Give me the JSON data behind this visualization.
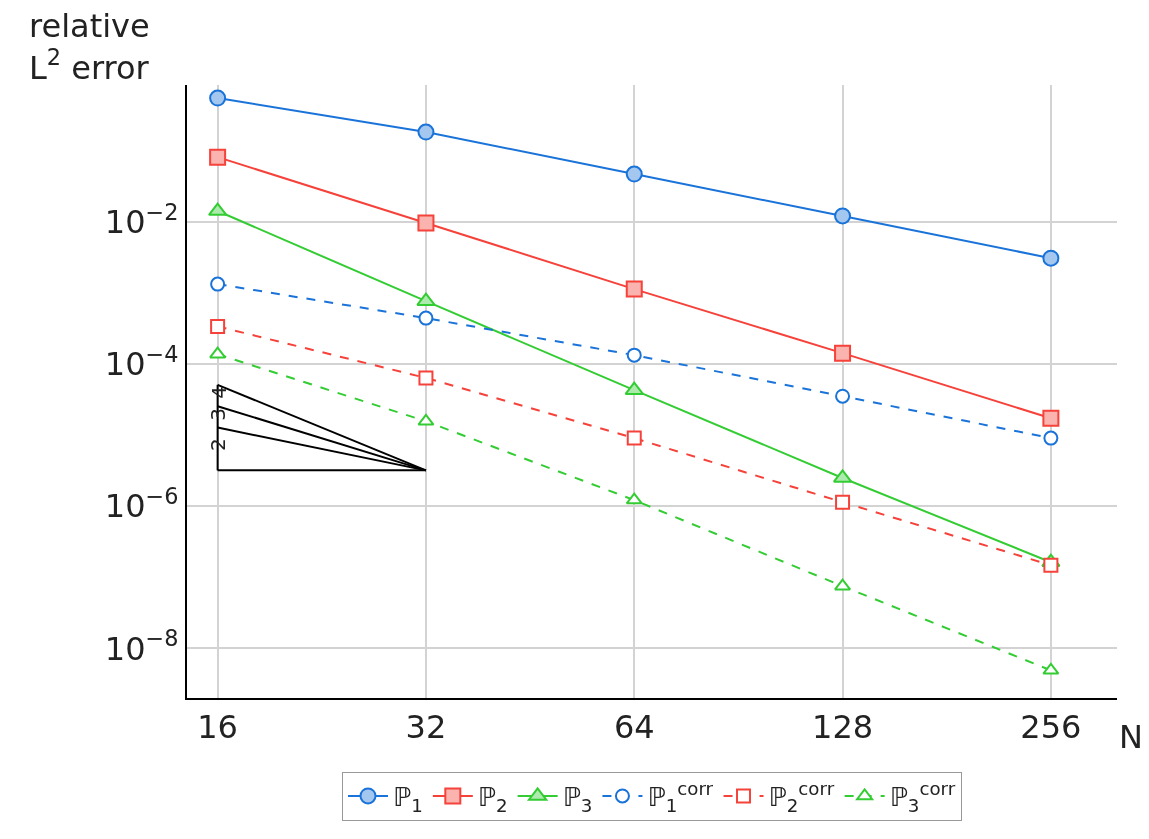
{
  "chart_data": {
    "type": "line",
    "xlabel": "N",
    "ylabel": "relative\nL$^{2}$ error",
    "x": [
      16,
      32,
      64,
      128,
      256
    ],
    "log": "xy",
    "grid": true,
    "legend": "bottom",
    "xlim": [
      14.45,
      319
    ],
    "ylim": [
      2e-09,
      0.85
    ],
    "xticks": [
      16,
      32,
      64,
      128,
      256
    ],
    "yticks": [
      {
        "value": 1e-08,
        "label": "10$^{−8}$"
      },
      {
        "value": 1e-06,
        "label": "10$^{−6}$"
      },
      {
        "value": 0.0001,
        "label": "10$^{−4}$"
      },
      {
        "value": 0.01,
        "label": "10$^{−2}$"
      }
    ],
    "series": [
      {
        "name": "ℙ$_{1}$",
        "color": "#1a73d9",
        "marker": "circle",
        "line_style": "solid",
        "values": [
          0.557,
          0.185,
          0.0474,
          0.0122,
          0.0031
        ]
      },
      {
        "name": "ℙ$_{2}$",
        "color": "#f5423a",
        "marker": "square",
        "line_style": "solid",
        "values": [
          0.082,
          0.0097,
          0.00114,
          0.000143,
          1.73e-05
        ]
      },
      {
        "name": "ℙ$_{3}$",
        "color": "#33cc33",
        "marker": "triangle",
        "line_style": "solid",
        "values": [
          0.0143,
          0.00077,
          4.3e-05,
          2.5e-06,
          1.63e-07
        ]
      },
      {
        "name": "ℙ$_{1}$$^{corr}$",
        "color": "#1a73d9",
        "marker": "circle",
        "line_style": "dashed",
        "values": [
          0.00134,
          0.000445,
          0.000134,
          3.54e-05,
          9.1e-06
        ]
      },
      {
        "name": "ℙ$_{2}$$^{corr}$",
        "color": "#f5423a",
        "marker": "square",
        "line_style": "dashed",
        "values": [
          0.00034,
          6.4e-05,
          9.1e-06,
          1.14e-06,
          1.48e-07
        ]
      },
      {
        "name": "ℙ$_{3}$$^{corr}$",
        "color": "#33cc33",
        "marker": "triangle",
        "line_style": "dashed",
        "values": [
          0.000138,
          1.57e-05,
          1.22e-06,
          7.5e-08,
          4.9e-09
        ]
      },
      {
        "color": "#000000",
        "marker": "none",
        "line_style": "solid",
        "values": [
          3.2e-06,
          3.2e-06,
          null,
          null,
          null
        ]
      },
      {
        "color": "#000000",
        "marker": "none",
        "line_style": "solid",
        "x": [
          16,
          16
        ],
        "values": [
          3.2e-06,
          5.12e-05
        ]
      },
      {
        "color": "#000000",
        "marker": "none",
        "line_style": "solid",
        "values": [
          5.12e-05,
          3.2e-06,
          null,
          null,
          null
        ]
      },
      {
        "color": "#000000",
        "marker": "none",
        "line_style": "solid",
        "values": [
          2.56e-05,
          3.2e-06,
          null,
          null,
          null
        ]
      },
      {
        "color": "#000000",
        "marker": "none",
        "line_style": "solid",
        "values": [
          1.28e-05,
          3.2e-06,
          null,
          null,
          null
        ]
      }
    ],
    "annotations": [
      "2",
      "3",
      "4"
    ]
  }
}
